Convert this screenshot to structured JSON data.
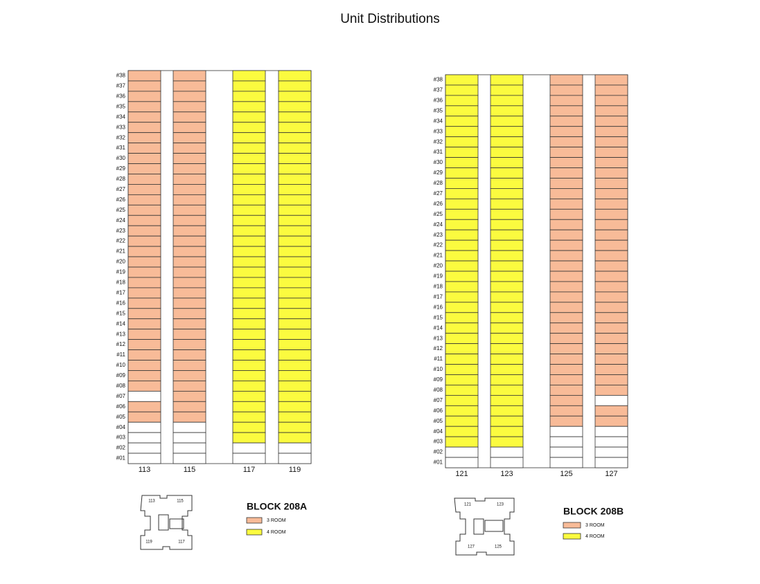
{
  "title": "Unit Distributions",
  "floors": [
    "#38",
    "#37",
    "#36",
    "#35",
    "#34",
    "#33",
    "#32",
    "#31",
    "#30",
    "#29",
    "#28",
    "#27",
    "#26",
    "#25",
    "#24",
    "#23",
    "#22",
    "#21",
    "#20",
    "#19",
    "#18",
    "#17",
    "#16",
    "#15",
    "#14",
    "#13",
    "#12",
    "#11",
    "#10",
    "#09",
    "#08",
    "#07",
    "#06",
    "#05",
    "#04",
    "#03",
    "#02",
    "#01"
  ],
  "blocks": [
    {
      "name": "BLOCK 208A",
      "legend": [
        {
          "label": "3 ROOM",
          "color": "#f8bb98"
        },
        {
          "label": "4 ROOM",
          "color": "#fbfb3f"
        }
      ],
      "columns": [
        {
          "label": "113",
          "room": "3 ROOM",
          "from": "#05",
          "vacant": [
            "#07"
          ]
        },
        {
          "label": "115",
          "room": "3 ROOM",
          "from": "#05",
          "vacant": []
        },
        {
          "label": "117",
          "room": "4 ROOM",
          "from": "#03",
          "vacant": []
        },
        {
          "label": "119",
          "room": "4 ROOM",
          "from": "#03",
          "vacant": []
        }
      ],
      "plan_labels": [
        "113",
        "115",
        "119",
        "117"
      ]
    },
    {
      "name": "BLOCK 208B",
      "legend": [
        {
          "label": "3 ROOM",
          "color": "#f8bb98"
        },
        {
          "label": "4 ROOM",
          "color": "#fbfb3f"
        }
      ],
      "columns": [
        {
          "label": "121",
          "room": "4 ROOM",
          "from": "#03",
          "vacant": []
        },
        {
          "label": "123",
          "room": "4 ROOM",
          "from": "#03",
          "vacant": []
        },
        {
          "label": "125",
          "room": "3 ROOM",
          "from": "#05",
          "vacant": []
        },
        {
          "label": "127",
          "room": "3 ROOM",
          "from": "#05",
          "vacant": [
            "#07"
          ]
        }
      ],
      "plan_labels": [
        "121",
        "123",
        "127",
        "125"
      ]
    }
  ]
}
